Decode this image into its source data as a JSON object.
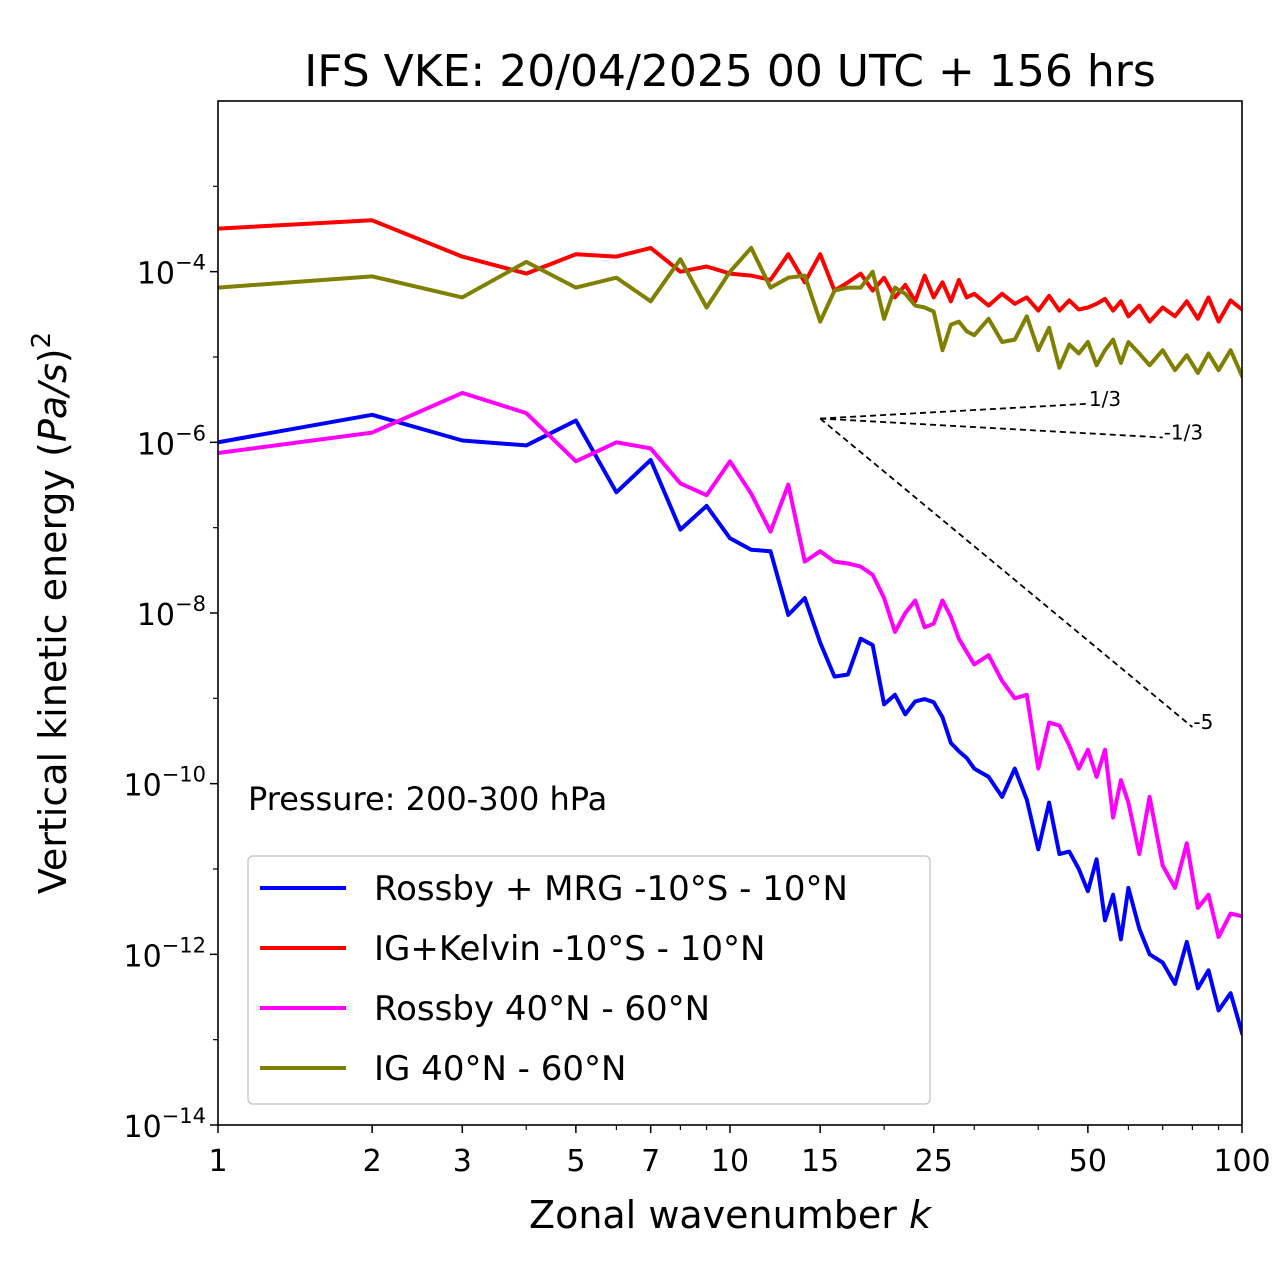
{
  "chart_data": {
    "type": "line",
    "title": "IFS VKE: 20/04/2025 00 UTC + 156 hrs",
    "xlabel_prefix": "Zonal wavenumber ",
    "xlabel_var": "k",
    "ylabel_prefix": "Vertical kinetic energy (",
    "ylabel_var": "Pa/s",
    "ylabel_suffix": ")",
    "ylabel_exp": "2",
    "x_scale": "log",
    "y_scale": "log",
    "xlim": [
      1,
      100
    ],
    "ylim": [
      1e-14,
      0.01
    ],
    "x_ticks": [
      {
        "value": 1,
        "label": "1"
      },
      {
        "value": 2,
        "label": "2"
      },
      {
        "value": 3,
        "label": "3"
      },
      {
        "value": 5,
        "label": "5"
      },
      {
        "value": 7,
        "label": "7"
      },
      {
        "value": 10,
        "label": "10"
      },
      {
        "value": 15,
        "label": "15"
      },
      {
        "value": 25,
        "label": "25"
      },
      {
        "value": 50,
        "label": "50"
      },
      {
        "value": 100,
        "label": "100"
      }
    ],
    "y_ticks": [
      {
        "value": 0.0001,
        "base": "10",
        "exp": "−4"
      },
      {
        "value": 1e-06,
        "base": "10",
        "exp": "−6"
      },
      {
        "value": 1e-08,
        "base": "10",
        "exp": "−8"
      },
      {
        "value": 1e-10,
        "base": "10",
        "exp": "−10"
      },
      {
        "value": 1e-12,
        "base": "10",
        "exp": "−12"
      },
      {
        "value": 1e-14,
        "base": "10",
        "exp": "−14"
      }
    ],
    "annotation": "Pressure: 200-300 hPa",
    "legend_position": "lower-left",
    "series": [
      {
        "name": "Rossby + MRG -10°S - 10°N",
        "color": "#0000ff",
        "x": [
          1,
          2,
          3,
          4,
          5,
          6,
          7,
          8,
          9,
          10,
          11,
          12,
          13,
          14,
          15,
          16,
          17,
          18,
          19,
          20,
          21,
          22,
          23,
          24,
          25,
          26,
          27,
          28,
          29,
          30,
          32,
          34,
          36,
          38,
          40,
          42,
          44,
          46,
          48,
          50,
          52,
          54,
          56,
          58,
          60,
          63,
          66,
          70,
          74,
          78,
          82,
          86,
          90,
          95,
          100
        ],
        "y": [
          1e-06,
          2.1e-06,
          1.05e-06,
          9.2e-07,
          1.8e-06,
          2.6e-07,
          6.2e-07,
          9.5e-08,
          1.8e-07,
          7.5e-08,
          5.5e-08,
          5.3e-08,
          9.5e-09,
          1.5e-08,
          4.5e-09,
          1.8e-09,
          1.9e-09,
          5e-09,
          4.2e-09,
          8.5e-10,
          1.1e-09,
          6.5e-10,
          9.2e-10,
          9.8e-10,
          9e-10,
          6e-10,
          3e-10,
          2.4e-10,
          2e-10,
          1.5e-10,
          1.2e-10,
          7e-11,
          1.5e-10,
          6.5e-11,
          1.7e-11,
          6e-11,
          1.5e-11,
          1.6e-11,
          1e-11,
          5.5e-12,
          1.3e-11,
          2.5e-12,
          5e-12,
          1.5e-12,
          6e-12,
          2e-12,
          1e-12,
          8e-13,
          4.5e-13,
          1.4e-12,
          4e-13,
          6.5e-13,
          2.2e-13,
          3.5e-13,
          1.2e-13
        ]
      },
      {
        "name": "IG+Kelvin -10°S - 10°N",
        "color": "#ff0000",
        "x": [
          1,
          2,
          3,
          4,
          5,
          6,
          7,
          8,
          9,
          10,
          11,
          12,
          13,
          14,
          15,
          16,
          17,
          18,
          19,
          20,
          21,
          22,
          23,
          24,
          25,
          26,
          27,
          28,
          29,
          30,
          32,
          34,
          36,
          38,
          40,
          42,
          44,
          46,
          48,
          50,
          52,
          54,
          56,
          58,
          60,
          63,
          66,
          70,
          74,
          78,
          82,
          86,
          90,
          95,
          100
        ],
        "y": [
          0.00032,
          0.0004,
          0.00015,
          9.5e-05,
          0.00016,
          0.00015,
          0.00019,
          0.0001,
          0.000115,
          9.5e-05,
          9e-05,
          8e-05,
          0.00016,
          7.5e-05,
          0.00016,
          6e-05,
          7.5e-05,
          9.5e-05,
          6e-05,
          8.5e-05,
          5e-05,
          7e-05,
          4.5e-05,
          9e-05,
          5e-05,
          7.5e-05,
          4.5e-05,
          8e-05,
          5e-05,
          5.5e-05,
          4e-05,
          5.5e-05,
          4.2e-05,
          5e-05,
          3.5e-05,
          5.2e-05,
          3.5e-05,
          4.6e-05,
          3.6e-05,
          3.8e-05,
          4.2e-05,
          4.8e-05,
          3.5e-05,
          4.5e-05,
          3e-05,
          4e-05,
          2.6e-05,
          3.8e-05,
          3e-05,
          4.5e-05,
          2.8e-05,
          5e-05,
          2.6e-05,
          4.6e-05,
          3.6e-05
        ]
      },
      {
        "name": "Rossby 40°N - 60°N",
        "color": "#ff00ff",
        "x": [
          1,
          2,
          3,
          4,
          5,
          6,
          7,
          8,
          9,
          10,
          11,
          12,
          13,
          14,
          15,
          16,
          17,
          18,
          19,
          20,
          21,
          22,
          23,
          24,
          25,
          26,
          27,
          28,
          29,
          30,
          32,
          34,
          36,
          38,
          40,
          42,
          44,
          46,
          48,
          50,
          52,
          54,
          56,
          58,
          60,
          63,
          66,
          70,
          74,
          78,
          82,
          86,
          90,
          95,
          100
        ],
        "y": [
          7.5e-07,
          1.3e-06,
          3.8e-06,
          2.2e-06,
          6e-07,
          1e-06,
          8.5e-07,
          3.3e-07,
          2.4e-07,
          6e-07,
          2.5e-07,
          9e-08,
          3.2e-07,
          4e-08,
          5.3e-08,
          4e-08,
          3.8e-08,
          3.5e-08,
          2.8e-08,
          1.5e-08,
          6e-09,
          1e-08,
          1.4e-08,
          6.8e-09,
          7.5e-09,
          1.4e-08,
          9e-09,
          5e-09,
          3.5e-09,
          2.5e-09,
          3.2e-09,
          1.6e-09,
          1e-09,
          1.1e-09,
          1.5e-10,
          5.2e-10,
          4.8e-10,
          2.8e-10,
          1.5e-10,
          2.5e-10,
          1.2e-10,
          2.5e-10,
          4e-11,
          1.1e-10,
          6e-11,
          1.5e-11,
          7e-11,
          1.1e-11,
          6e-12,
          2e-11,
          3.5e-12,
          5e-12,
          1.6e-12,
          3e-12,
          2.8e-12
        ]
      },
      {
        "name": "IG 40°N - 60°N",
        "color": "#808000",
        "x": [
          1,
          2,
          3,
          4,
          5,
          6,
          7,
          8,
          9,
          10,
          11,
          12,
          13,
          14,
          15,
          16,
          17,
          18,
          19,
          20,
          21,
          22,
          23,
          24,
          25,
          26,
          27,
          28,
          29,
          30,
          32,
          34,
          36,
          38,
          40,
          42,
          44,
          46,
          48,
          50,
          52,
          54,
          56,
          58,
          60,
          63,
          66,
          70,
          74,
          78,
          82,
          86,
          90,
          95,
          100
        ],
        "y": [
          6.5e-05,
          8.8e-05,
          5e-05,
          0.00013,
          6.5e-05,
          8.5e-05,
          4.5e-05,
          0.00014,
          3.8e-05,
          0.0001,
          0.00019,
          6.5e-05,
          8.5e-05,
          9e-05,
          2.6e-05,
          6e-05,
          6.5e-05,
          6.5e-05,
          0.0001,
          2.8e-05,
          6.5e-05,
          5.5e-05,
          4e-05,
          3.8e-05,
          3.4e-05,
          1.2e-05,
          2.4e-05,
          2.6e-05,
          2e-05,
          1.8e-05,
          2.8e-05,
          1.5e-05,
          1.6e-05,
          3e-05,
          1.2e-05,
          2.2e-05,
          7.5e-06,
          1.4e-05,
          1.1e-05,
          1.5e-05,
          8e-06,
          1.2e-05,
          1.6e-05,
          8.5e-06,
          1.5e-05,
          1.1e-05,
          8e-06,
          1.2e-05,
          7e-06,
          1.05e-05,
          6.5e-06,
          1.1e-05,
          7e-06,
          1.2e-05,
          6e-06
        ]
      }
    ],
    "reference_lines": [
      {
        "label": "1/3",
        "x": [
          15,
          50
        ],
        "y": [
          1.9e-06,
          2.83e-06
        ]
      },
      {
        "label": "-1/3",
        "x": [
          15,
          70
        ],
        "y": [
          1.9e-06,
          1.14e-06
        ]
      },
      {
        "label": "-5",
        "x": [
          15,
          80
        ],
        "y": [
          1.9e-06,
          4.6e-10
        ]
      }
    ]
  }
}
